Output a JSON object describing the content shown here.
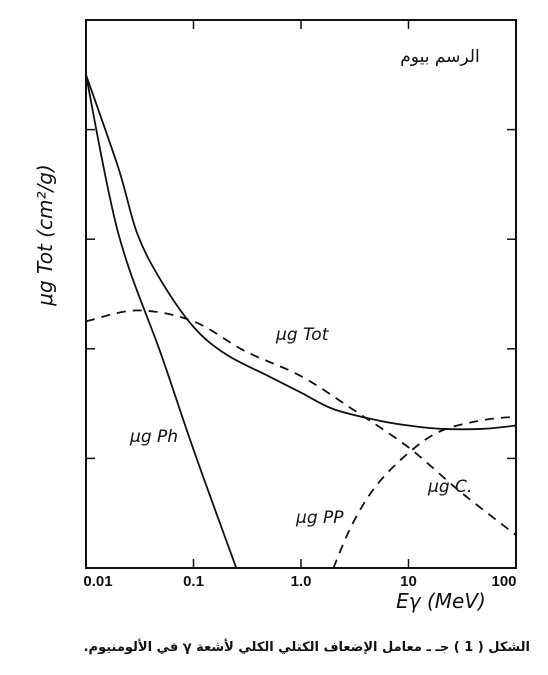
{
  "chart_data": {
    "type": "line",
    "ylabel": "μg Tot (cm²/g)",
    "xlabel": "Eγ (MeV)",
    "x_scale": "log",
    "xlim": [
      0.01,
      100
    ],
    "ylim": [
      0,
      5
    ],
    "grid": false,
    "x_ticks": [
      {
        "value": 0.01,
        "label": "0.01"
      },
      {
        "value": 0.1,
        "label": "0.1"
      },
      {
        "value": 1,
        "label": "1.0"
      },
      {
        "value": 10,
        "label": "10"
      },
      {
        "value": 100,
        "label": "100"
      }
    ],
    "y_ticks": [
      1,
      2,
      3,
      4
    ],
    "annotation_top_right": "الرسم بيوم",
    "series": [
      {
        "name": "μg Tot",
        "style": "solid",
        "x": [
          0.01,
          0.02,
          0.03,
          0.05,
          0.1,
          0.2,
          0.5,
          1,
          2,
          5,
          10,
          20,
          50,
          100
        ],
        "y": [
          4.5,
          3.65,
          3.05,
          2.62,
          2.2,
          1.95,
          1.75,
          1.6,
          1.45,
          1.35,
          1.3,
          1.27,
          1.27,
          1.3
        ]
      },
      {
        "name": "μg Ph",
        "style": "solid",
        "x": [
          0.01,
          0.02,
          0.05,
          0.1,
          0.25
        ],
        "y": [
          4.5,
          3.05,
          1.95,
          1.08,
          0.0
        ]
      },
      {
        "name": "μg C.",
        "style": "dashed",
        "x": [
          0.01,
          0.03,
          0.1,
          0.3,
          1,
          3,
          10,
          30,
          100
        ],
        "y": [
          2.25,
          2.35,
          2.25,
          1.98,
          1.75,
          1.45,
          1.1,
          0.7,
          0.3
        ]
      },
      {
        "name": "μg PP",
        "style": "dashed",
        "x": [
          2,
          3,
          5,
          10,
          20,
          50,
          100
        ],
        "y": [
          0.0,
          0.4,
          0.75,
          1.05,
          1.25,
          1.35,
          1.38
        ]
      }
    ],
    "series_labels": [
      "μg Ph",
      "μg PP",
      "μg Tot",
      "μg C."
    ]
  },
  "caption": "الشكل ( 1 ) جـ ـ معامل الإضعاف الكتلي الكلي لأشعة γ في الألومنيوم."
}
